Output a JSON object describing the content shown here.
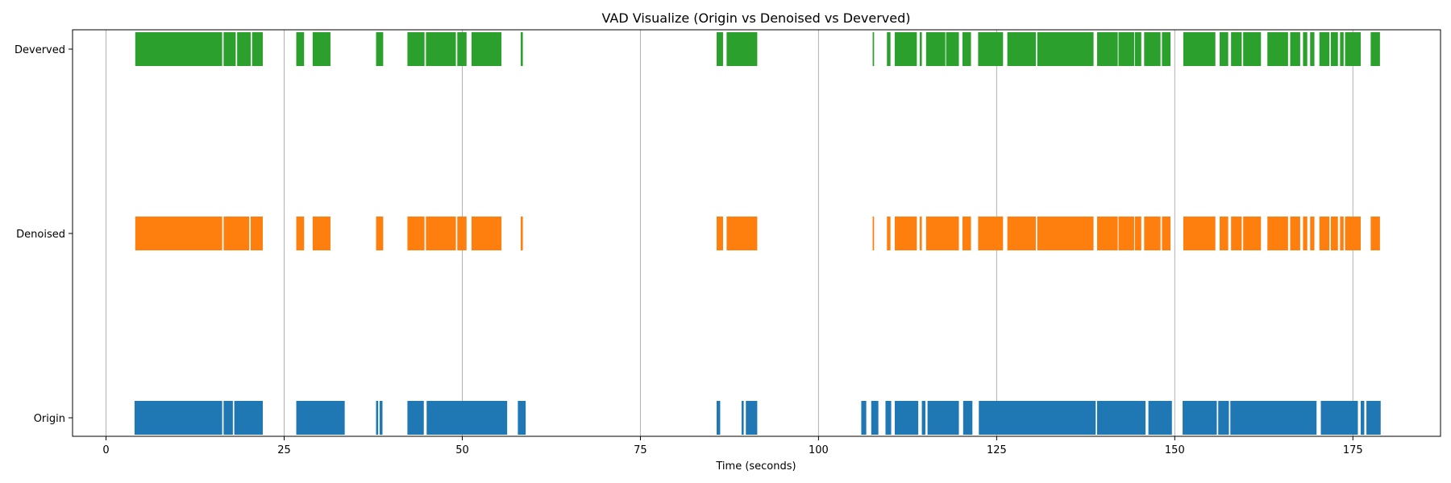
{
  "chart_data": {
    "type": "broken_barh",
    "title": "VAD Visualize (Origin vs Denoised vs Deverved)",
    "xlabel": "Time (seconds)",
    "ylabel": "",
    "xlim": [
      -4.7,
      187.3
    ],
    "xticks": [
      0,
      25,
      50,
      75,
      100,
      125,
      150,
      175
    ],
    "grid": "vertical",
    "rows": [
      {
        "name": "Deverved",
        "color": "#2ca02c",
        "segments": [
          [
            4.1,
            16.3
          ],
          [
            16.5,
            18.2
          ],
          [
            18.4,
            20.3
          ],
          [
            20.5,
            22.0
          ],
          [
            26.7,
            27.8
          ],
          [
            29.0,
            31.5
          ],
          [
            37.9,
            38.9
          ],
          [
            42.3,
            44.7
          ],
          [
            44.9,
            49.1
          ],
          [
            49.3,
            50.6
          ],
          [
            51.3,
            55.5
          ],
          [
            58.2,
            58.5
          ],
          [
            85.7,
            86.6
          ],
          [
            87.1,
            91.4
          ],
          [
            107.6,
            107.8
          ],
          [
            109.6,
            110.1
          ],
          [
            110.7,
            113.8
          ],
          [
            114.2,
            114.5
          ],
          [
            115.1,
            117.8
          ],
          [
            117.9,
            119.7
          ],
          [
            120.2,
            121.4
          ],
          [
            122.4,
            125.9
          ],
          [
            126.5,
            130.5
          ],
          [
            130.7,
            138.6
          ],
          [
            139.1,
            142.0
          ],
          [
            142.1,
            144.3
          ],
          [
            144.4,
            145.3
          ],
          [
            145.7,
            148.0
          ],
          [
            148.2,
            149.4
          ],
          [
            151.2,
            155.7
          ],
          [
            156.3,
            157.5
          ],
          [
            157.9,
            159.4
          ],
          [
            159.6,
            162.1
          ],
          [
            163.0,
            165.9
          ],
          [
            166.2,
            167.6
          ],
          [
            168.0,
            168.6
          ],
          [
            169.0,
            169.6
          ],
          [
            170.3,
            171.7
          ],
          [
            171.9,
            172.9
          ],
          [
            173.2,
            173.7
          ],
          [
            173.9,
            176.1
          ],
          [
            177.5,
            178.8
          ]
        ]
      },
      {
        "name": "Denoised",
        "color": "#ff7f0e",
        "segments": [
          [
            4.1,
            16.3
          ],
          [
            16.5,
            20.1
          ],
          [
            20.3,
            22.0
          ],
          [
            26.7,
            27.8
          ],
          [
            29.0,
            31.5
          ],
          [
            37.9,
            38.9
          ],
          [
            42.3,
            44.7
          ],
          [
            44.9,
            49.1
          ],
          [
            49.3,
            50.6
          ],
          [
            51.3,
            55.5
          ],
          [
            58.2,
            58.5
          ],
          [
            85.7,
            86.6
          ],
          [
            87.1,
            91.4
          ],
          [
            107.6,
            107.8
          ],
          [
            109.6,
            110.1
          ],
          [
            110.7,
            113.8
          ],
          [
            114.2,
            114.5
          ],
          [
            115.1,
            119.7
          ],
          [
            120.2,
            121.4
          ],
          [
            122.4,
            125.9
          ],
          [
            126.5,
            130.5
          ],
          [
            130.7,
            138.6
          ],
          [
            139.1,
            142.0
          ],
          [
            142.1,
            144.3
          ],
          [
            144.4,
            145.3
          ],
          [
            145.7,
            148.0
          ],
          [
            148.2,
            149.4
          ],
          [
            151.2,
            155.7
          ],
          [
            156.3,
            157.5
          ],
          [
            157.9,
            159.4
          ],
          [
            159.6,
            162.1
          ],
          [
            163.0,
            165.9
          ],
          [
            166.2,
            167.6
          ],
          [
            168.0,
            168.6
          ],
          [
            169.0,
            169.6
          ],
          [
            170.3,
            171.7
          ],
          [
            171.9,
            172.9
          ],
          [
            173.2,
            173.7
          ],
          [
            173.9,
            176.1
          ],
          [
            177.5,
            178.8
          ]
        ]
      },
      {
        "name": "Origin",
        "color": "#1f77b4",
        "segments": [
          [
            4.0,
            16.3
          ],
          [
            16.5,
            17.8
          ],
          [
            18.0,
            22.0
          ],
          [
            26.7,
            33.5
          ],
          [
            37.9,
            38.2
          ],
          [
            38.4,
            38.8
          ],
          [
            42.3,
            44.6
          ],
          [
            45.0,
            56.3
          ],
          [
            57.8,
            58.9
          ],
          [
            85.7,
            86.2
          ],
          [
            89.2,
            89.5
          ],
          [
            89.8,
            91.4
          ],
          [
            106.0,
            106.7
          ],
          [
            107.4,
            108.4
          ],
          [
            109.4,
            110.2
          ],
          [
            110.7,
            114.0
          ],
          [
            114.5,
            115.0
          ],
          [
            115.3,
            119.7
          ],
          [
            120.3,
            121.6
          ],
          [
            122.5,
            138.9
          ],
          [
            139.1,
            145.9
          ],
          [
            146.3,
            149.6
          ],
          [
            151.1,
            155.9
          ],
          [
            156.1,
            157.6
          ],
          [
            157.8,
            169.9
          ],
          [
            170.5,
            175.7
          ],
          [
            176.1,
            176.6
          ],
          [
            176.9,
            178.9
          ]
        ]
      }
    ]
  }
}
